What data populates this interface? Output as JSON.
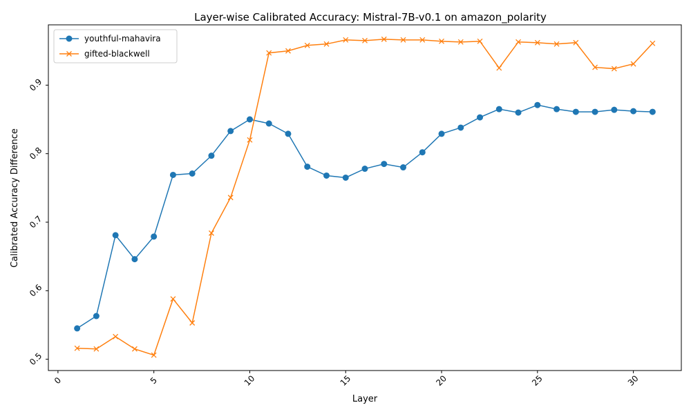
{
  "chart_data": {
    "type": "line",
    "title": "Layer-wise Calibrated Accuracy: Mistral-7B-v0.1 on amazon_polarity",
    "xlabel": "Layer",
    "ylabel": "Calibrated Accuracy Difference",
    "xlim": [
      -0.5,
      32.5
    ],
    "ylim": [
      0.4835,
      0.988
    ],
    "xticks": [
      0,
      5,
      10,
      15,
      20,
      25,
      30
    ],
    "yticks": [
      0.5,
      0.6,
      0.7,
      0.8,
      0.9
    ],
    "tick_label_rotation": 45,
    "grid": false,
    "legend": "top-left",
    "x": [
      1,
      2,
      3,
      4,
      5,
      6,
      7,
      8,
      9,
      10,
      11,
      12,
      13,
      14,
      15,
      16,
      17,
      18,
      19,
      20,
      21,
      22,
      23,
      24,
      25,
      26,
      27,
      28,
      29,
      30,
      31
    ],
    "series": [
      {
        "name": "youthful-mahavira",
        "color": "#1f77b4",
        "marker": "circle",
        "values": [
          0.545,
          0.563,
          0.681,
          0.646,
          0.679,
          0.769,
          0.771,
          0.797,
          0.833,
          0.85,
          0.844,
          0.829,
          0.781,
          0.768,
          0.765,
          0.778,
          0.785,
          0.78,
          0.802,
          0.829,
          0.838,
          0.853,
          0.865,
          0.86,
          0.871,
          0.865,
          0.861,
          0.861,
          0.864,
          0.862,
          0.861
        ]
      },
      {
        "name": "gifted-blackwell",
        "color": "#ff7f0e",
        "marker": "x",
        "values": [
          0.516,
          0.515,
          0.533,
          0.515,
          0.506,
          0.588,
          0.553,
          0.684,
          0.736,
          0.82,
          0.947,
          0.95,
          0.958,
          0.96,
          0.966,
          0.965,
          0.967,
          0.966,
          0.966,
          0.964,
          0.963,
          0.964,
          0.925,
          0.963,
          0.962,
          0.96,
          0.962,
          0.926,
          0.924,
          0.931,
          0.961
        ]
      }
    ]
  }
}
